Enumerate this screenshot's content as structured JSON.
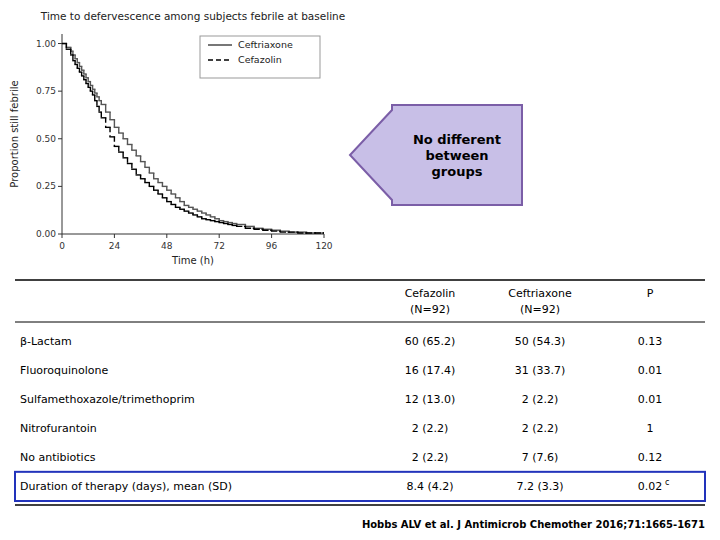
{
  "chart_data": {
    "type": "step",
    "title": "Time to defervescence among subjects febrile at baseline",
    "x_label": "Time (h)",
    "y_label": "Proportion still febrile",
    "x": [
      0,
      2,
      4,
      5,
      6,
      7,
      8,
      9,
      10,
      11,
      12,
      13,
      14,
      15,
      16,
      17,
      18,
      20,
      22,
      24,
      26,
      28,
      30,
      32,
      34,
      36,
      38,
      40,
      42,
      44,
      46,
      48,
      50,
      52,
      54,
      56,
      58,
      60,
      62,
      64,
      66,
      68,
      70,
      72,
      74,
      76,
      78,
      80,
      84,
      88,
      92,
      96,
      100,
      104,
      108,
      112,
      116,
      120
    ],
    "series": [
      {
        "name": "Ceftriaxone",
        "color": "#555555",
        "line_style": "solid",
        "values": [
          1.0,
          0.98,
          0.96,
          0.94,
          0.92,
          0.9,
          0.88,
          0.86,
          0.84,
          0.82,
          0.8,
          0.78,
          0.76,
          0.74,
          0.72,
          0.7,
          0.68,
          0.64,
          0.6,
          0.56,
          0.53,
          0.5,
          0.47,
          0.44,
          0.41,
          0.38,
          0.35,
          0.32,
          0.29,
          0.27,
          0.25,
          0.23,
          0.21,
          0.19,
          0.17,
          0.15,
          0.14,
          0.13,
          0.12,
          0.11,
          0.1,
          0.09,
          0.08,
          0.07,
          0.065,
          0.06,
          0.055,
          0.05,
          0.04,
          0.03,
          0.025,
          0.02,
          0.015,
          0.01,
          0.01,
          0.005,
          0.005,
          0.005
        ]
      },
      {
        "name": "Cefazolin",
        "color": "#000000",
        "line_style": "dashed",
        "values": [
          1.0,
          0.97,
          0.94,
          0.91,
          0.89,
          0.87,
          0.85,
          0.83,
          0.81,
          0.79,
          0.77,
          0.75,
          0.73,
          0.7,
          0.67,
          0.64,
          0.61,
          0.56,
          0.51,
          0.46,
          0.43,
          0.4,
          0.37,
          0.34,
          0.31,
          0.29,
          0.27,
          0.25,
          0.23,
          0.21,
          0.19,
          0.17,
          0.155,
          0.14,
          0.13,
          0.12,
          0.11,
          0.1,
          0.09,
          0.08,
          0.075,
          0.07,
          0.065,
          0.06,
          0.055,
          0.05,
          0.045,
          0.04,
          0.03,
          0.025,
          0.02,
          0.015,
          0.01,
          0.01,
          0.005,
          0.005,
          0.005,
          0.005
        ]
      }
    ],
    "xlim": [
      0,
      120
    ],
    "xticks": [
      0,
      24,
      48,
      72,
      96,
      120
    ],
    "ylim": [
      0,
      1.05
    ],
    "yticks": [
      {
        "value": 0,
        "label": "0.00"
      },
      {
        "value": 0.25,
        "label": "0.25"
      },
      {
        "value": 0.5,
        "label": "0.50"
      },
      {
        "value": 0.75,
        "label": "0.75"
      },
      {
        "value": 1,
        "label": "1.00"
      }
    ],
    "grid": false,
    "legend": "upper right",
    "annotations": [
      {
        "text": "No different\nbetween\ngroups",
        "color": "#C8BFE7"
      }
    ],
    "table": {
      "columns": [
        {
          "label": "Cefazolin",
          "sublabel": "(N=92)"
        },
        {
          "label": "Ceftriaxone",
          "sublabel": "(N=92)"
        },
        {
          "label": "P"
        }
      ],
      "rows": [
        {
          "label": "β-Lactam",
          "cells": [
            "60 (65.2)",
            "50 (54.3)",
            "0.13"
          ]
        },
        {
          "label": "Fluoroquinolone",
          "cells": [
            "16 (17.4)",
            "31 (33.7)",
            "0.01"
          ]
        },
        {
          "label": "Sulfamethoxazole/trimethoprim",
          "cells": [
            "12 (13.0)",
            "2 (2.2)",
            "0.01"
          ]
        },
        {
          "label": "Nitrofurantoin",
          "cells": [
            "2 (2.2)",
            "2 (2.2)",
            "1"
          ]
        },
        {
          "label": "No antibiotics",
          "cells": [
            "2 (2.2)",
            "7 (7.6)",
            "0.12"
          ]
        },
        {
          "label": "Duration of therapy (days), mean (SD)",
          "cells": [
            "8.4 (4.2)",
            "7.2 (3.3)",
            {
              "text": "0.02",
              "superscript": "c"
            }
          ],
          "highlight": true
        }
      ],
      "highlight_color": "#2233BB"
    },
    "citation": "Hobbs ALV et al. J Antimicrob Chemother 2016;71:1665-1671"
  }
}
